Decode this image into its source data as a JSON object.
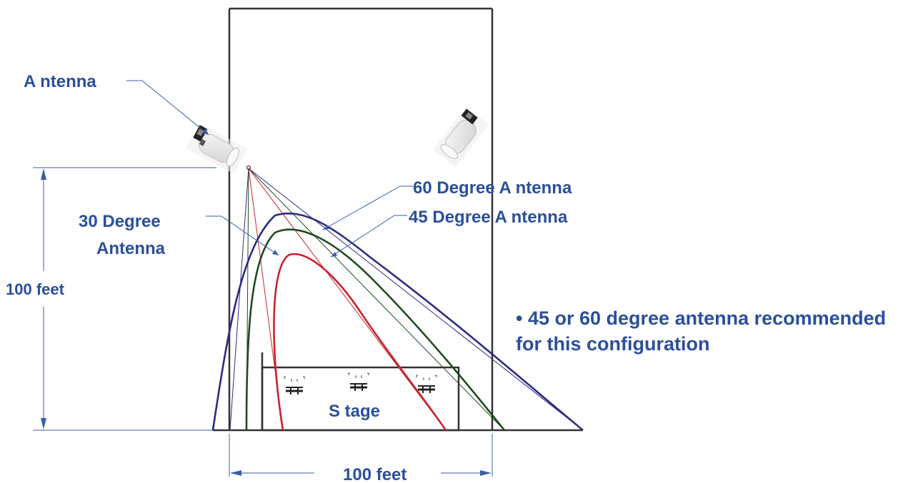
{
  "labels": {
    "antenna": "A ntenna",
    "deg60": "60  Degree  A ntenna",
    "deg45": "45  Degree  A ntenna",
    "deg30_line1": "30 Degree",
    "deg30_line2": "Antenna",
    "height": "100 feet",
    "width": "100 feet",
    "stage": "S tage",
    "note_line1": "• 45 or 60 degree antenna recommended",
    "note_line2": "for this configuration"
  },
  "colors": {
    "label_text": "#2b4f9a",
    "deg60_curve": "#2e2a7e",
    "deg45_curve": "#1f4a1f",
    "deg30_curve": "#c8242c",
    "dimension_line": "#3a5fa8",
    "outline": "#333333"
  }
}
